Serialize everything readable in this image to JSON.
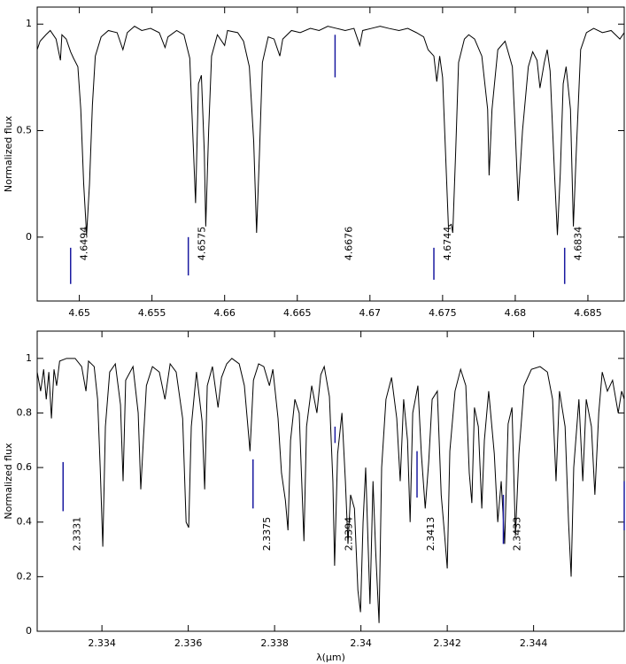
{
  "chart_data": [
    {
      "type": "line",
      "ylabel": "Normalized flux",
      "color": "#000000",
      "annotation_color": "#1a1aa0",
      "xlim": [
        4.6471,
        4.6875
      ],
      "ylim": [
        -0.3,
        1.08
      ],
      "xticks": [
        4.65,
        4.655,
        4.66,
        4.665,
        4.67,
        4.675,
        4.68,
        4.685
      ],
      "yticks": [
        0,
        0.5,
        1
      ],
      "x": [
        4.6471,
        4.6473,
        4.6477,
        4.648,
        4.6484,
        4.6487,
        4.6488,
        4.6491,
        4.6494,
        4.6496,
        4.6499,
        4.6501,
        4.6503,
        4.6505,
        4.6507,
        4.6509,
        4.6511,
        4.6515,
        4.652,
        4.6526,
        4.653,
        4.6533,
        4.6538,
        4.6543,
        4.6549,
        4.6555,
        4.6559,
        4.6561,
        4.6567,
        4.6572,
        4.6576,
        4.6578,
        4.658,
        4.6582,
        4.6584,
        4.6586,
        4.6587,
        4.6589,
        4.6591,
        4.6595,
        4.66,
        4.6602,
        4.6609,
        4.6613,
        4.6617,
        4.662,
        4.6622,
        4.6624,
        4.6626,
        4.663,
        4.6634,
        4.6638,
        4.664,
        4.6646,
        4.6652,
        4.6659,
        4.6665,
        4.6671,
        4.6677,
        4.6683,
        4.6689,
        4.6693,
        4.6695,
        4.6701,
        4.6707,
        4.6713,
        4.672,
        4.6726,
        4.6732,
        4.6737,
        4.674,
        4.6744,
        4.6746,
        4.6748,
        4.675,
        4.6752,
        4.6754,
        4.6756,
        4.6757,
        4.6759,
        4.6761,
        4.6765,
        4.6768,
        4.6772,
        4.6777,
        4.6781,
        4.6782,
        4.6784,
        4.6788,
        4.6793,
        4.6798,
        4.68,
        4.6802,
        4.6805,
        4.6809,
        4.6812,
        4.6815,
        4.6817,
        4.682,
        4.6822,
        4.6824,
        4.6827,
        4.6829,
        4.6831,
        4.6833,
        4.6835,
        4.6838,
        4.684,
        4.6842,
        4.6845,
        4.6849,
        4.6854,
        4.686,
        4.6866,
        4.6872,
        4.6875
      ],
      "values": [
        0.88,
        0.92,
        0.95,
        0.97,
        0.93,
        0.83,
        0.95,
        0.93,
        0.87,
        0.84,
        0.8,
        0.6,
        0.25,
        0.01,
        0.25,
        0.62,
        0.85,
        0.94,
        0.97,
        0.96,
        0.88,
        0.96,
        0.99,
        0.97,
        0.98,
        0.96,
        0.89,
        0.94,
        0.97,
        0.95,
        0.84,
        0.5,
        0.16,
        0.72,
        0.76,
        0.4,
        0.05,
        0.5,
        0.85,
        0.95,
        0.9,
        0.97,
        0.96,
        0.92,
        0.8,
        0.45,
        0.02,
        0.4,
        0.82,
        0.94,
        0.93,
        0.85,
        0.93,
        0.97,
        0.96,
        0.98,
        0.97,
        0.99,
        0.98,
        0.97,
        0.98,
        0.9,
        0.97,
        0.98,
        0.99,
        0.98,
        0.97,
        0.98,
        0.96,
        0.94,
        0.88,
        0.85,
        0.73,
        0.85,
        0.75,
        0.4,
        0.05,
        0.06,
        0.02,
        0.4,
        0.82,
        0.93,
        0.95,
        0.93,
        0.85,
        0.6,
        0.29,
        0.6,
        0.88,
        0.92,
        0.8,
        0.5,
        0.17,
        0.5,
        0.8,
        0.87,
        0.83,
        0.7,
        0.82,
        0.88,
        0.78,
        0.3,
        0.01,
        0.3,
        0.72,
        0.8,
        0.6,
        0.05,
        0.4,
        0.88,
        0.96,
        0.98,
        0.96,
        0.97,
        0.93,
        0.96
      ],
      "annotations": [
        {
          "x": 4.6494,
          "ymin": -0.22,
          "ymax": -0.05
        },
        {
          "x": 4.6575,
          "ymin": -0.18,
          "ymax": 0
        },
        {
          "x": 4.6676,
          "ymin": 0.75,
          "ymax": 0.95
        },
        {
          "x": 4.6744,
          "ymin": -0.2,
          "ymax": -0.05
        },
        {
          "x": 4.6834,
          "ymin": -0.22,
          "ymax": -0.05
        }
      ]
    },
    {
      "type": "line",
      "ylabel": "Normalized flux",
      "xlabel": "λ(μm)",
      "color": "#000000",
      "annotation_color": "#1a1aa0",
      "xlim": [
        2.3325,
        2.3461
      ],
      "ylim": [
        0,
        1.1
      ],
      "xticks": [
        2.334,
        2.336,
        2.338,
        2.34,
        2.342,
        2.344
      ],
      "yticks": [
        0,
        0.2,
        0.4,
        0.6,
        0.8,
        1
      ],
      "x": [
        2.3325,
        2.33258,
        2.33265,
        2.33271,
        2.33277,
        2.33283,
        2.33289,
        2.33295,
        2.33302,
        2.33318,
        2.33338,
        2.33353,
        2.33363,
        2.33369,
        2.33382,
        2.3339,
        2.33396,
        2.33402,
        2.33408,
        2.33418,
        2.33431,
        2.33443,
        2.33449,
        2.33455,
        2.33472,
        2.33484,
        2.3349,
        2.33496,
        2.33503,
        2.33517,
        2.33533,
        2.33546,
        2.33558,
        2.33572,
        2.33587,
        2.33595,
        2.33601,
        2.33607,
        2.33619,
        2.33632,
        2.33638,
        2.33644,
        2.33656,
        2.33669,
        2.33677,
        2.33689,
        2.33701,
        2.33718,
        2.3373,
        2.33743,
        2.33751,
        2.33763,
        2.33775,
        2.33788,
        2.33796,
        2.33808,
        2.33816,
        2.33825,
        2.33831,
        2.33837,
        2.33847,
        2.33857,
        2.33868,
        2.33874,
        2.33886,
        2.33898,
        2.33907,
        2.33915,
        2.33927,
        2.33935,
        2.33939,
        2.33946,
        2.33956,
        2.33964,
        2.3397,
        2.33976,
        2.33985,
        2.33993,
        2.33999,
        2.34005,
        2.34011,
        2.34017,
        2.34021,
        2.34028,
        2.34034,
        2.34042,
        2.34048,
        2.34058,
        2.34071,
        2.34083,
        2.34091,
        2.34099,
        2.34108,
        2.34114,
        2.3412,
        2.34132,
        2.3414,
        2.34149,
        2.34157,
        2.34165,
        2.34177,
        2.34186,
        2.34194,
        2.342,
        2.34206,
        2.34218,
        2.34231,
        2.34243,
        2.34251,
        2.34257,
        2.34263,
        2.34272,
        2.3428,
        2.34286,
        2.34296,
        2.34309,
        2.34317,
        2.34325,
        2.34333,
        2.34341,
        2.3435,
        2.34358,
        2.34366,
        2.34378,
        2.34395,
        2.34415,
        2.34432,
        2.34444,
        2.34452,
        2.3446,
        2.34473,
        2.34481,
        2.34487,
        2.34493,
        2.34505,
        2.34514,
        2.34522,
        2.34534,
        2.34542,
        2.34551,
        2.34559,
        2.34571,
        2.34583,
        2.34596,
        2.34604,
        2.3461
      ],
      "values": [
        0.95,
        0.88,
        0.96,
        0.85,
        0.95,
        0.78,
        0.96,
        0.9,
        0.99,
        1.0,
        1.0,
        0.97,
        0.88,
        0.99,
        0.97,
        0.85,
        0.6,
        0.31,
        0.75,
        0.95,
        0.98,
        0.83,
        0.55,
        0.92,
        0.97,
        0.8,
        0.52,
        0.7,
        0.9,
        0.97,
        0.95,
        0.85,
        0.98,
        0.95,
        0.78,
        0.4,
        0.38,
        0.75,
        0.95,
        0.77,
        0.52,
        0.9,
        0.97,
        0.82,
        0.93,
        0.98,
        1.0,
        0.98,
        0.9,
        0.66,
        0.92,
        0.98,
        0.97,
        0.9,
        0.96,
        0.78,
        0.58,
        0.48,
        0.37,
        0.7,
        0.85,
        0.8,
        0.33,
        0.75,
        0.9,
        0.8,
        0.94,
        0.97,
        0.86,
        0.55,
        0.24,
        0.65,
        0.8,
        0.55,
        0.32,
        0.5,
        0.45,
        0.15,
        0.07,
        0.4,
        0.6,
        0.3,
        0.1,
        0.55,
        0.3,
        0.03,
        0.6,
        0.85,
        0.93,
        0.78,
        0.55,
        0.85,
        0.7,
        0.4,
        0.8,
        0.9,
        0.65,
        0.45,
        0.62,
        0.85,
        0.88,
        0.5,
        0.35,
        0.23,
        0.66,
        0.88,
        0.96,
        0.9,
        0.58,
        0.47,
        0.82,
        0.75,
        0.45,
        0.7,
        0.88,
        0.65,
        0.4,
        0.55,
        0.32,
        0.76,
        0.82,
        0.35,
        0.65,
        0.9,
        0.96,
        0.97,
        0.95,
        0.85,
        0.55,
        0.88,
        0.75,
        0.4,
        0.2,
        0.6,
        0.85,
        0.55,
        0.85,
        0.75,
        0.5,
        0.8,
        0.95,
        0.88,
        0.92,
        0.8,
        0.88,
        0.85
      ],
      "annotations": [
        {
          "x": 2.3331,
          "ymin": 0.44,
          "ymax": 0.62
        },
        {
          "x": 2.3375,
          "ymin": 0.45,
          "ymax": 0.63
        },
        {
          "x": 2.3394,
          "ymin": 0.69,
          "ymax": 0.75
        },
        {
          "x": 2.3413,
          "ymin": 0.49,
          "ymax": 0.66
        },
        {
          "x": 2.3433,
          "ymin": 0.32,
          "ymax": 0.5
        },
        {
          "x": 2.3461,
          "ymin": 0.37,
          "ymax": 0.55
        }
      ]
    }
  ]
}
